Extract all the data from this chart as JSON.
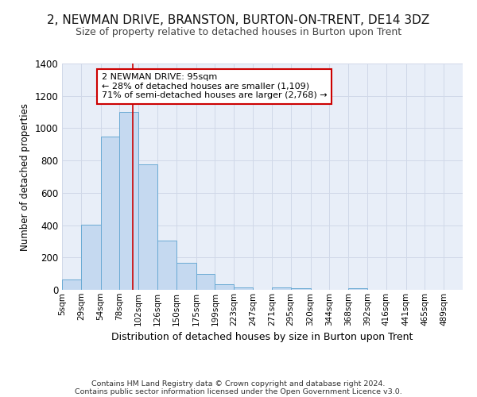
{
  "title_line1": "2, NEWMAN DRIVE, BRANSTON, BURTON-ON-TRENT, DE14 3DZ",
  "title_line2": "Size of property relative to detached houses in Burton upon Trent",
  "xlabel": "Distribution of detached houses by size in Burton upon Trent",
  "ylabel": "Number of detached properties",
  "footer_line1": "Contains HM Land Registry data © Crown copyright and database right 2024.",
  "footer_line2": "Contains public sector information licensed under the Open Government Licence v3.0.",
  "bar_labels": [
    "5sqm",
    "29sqm",
    "54sqm",
    "78sqm",
    "102sqm",
    "126sqm",
    "150sqm",
    "175sqm",
    "199sqm",
    "223sqm",
    "247sqm",
    "271sqm",
    "295sqm",
    "320sqm",
    "344sqm",
    "368sqm",
    "392sqm",
    "416sqm",
    "441sqm",
    "465sqm",
    "489sqm"
  ],
  "bar_values": [
    65,
    405,
    950,
    1100,
    775,
    305,
    165,
    100,
    35,
    15,
    0,
    15,
    10,
    0,
    0,
    10,
    0,
    0,
    0,
    0,
    0
  ],
  "bar_color": "#c5d9f0",
  "bar_edge_color": "#6aaad4",
  "grid_color": "#d0d8e8",
  "background_color": "#e8eef8",
  "annotation_text": "2 NEWMAN DRIVE: 95sqm\n← 28% of detached houses are smaller (1,109)\n71% of semi-detached houses are larger (2,768) →",
  "vline_x": 95,
  "vline_color": "#cc0000",
  "annotation_box_color": "#ffffff",
  "annotation_box_edge": "#cc0000",
  "ylim": [
    0,
    1400
  ],
  "bin_edges": [
    5,
    29,
    54,
    78,
    102,
    126,
    150,
    175,
    199,
    223,
    247,
    271,
    295,
    320,
    344,
    368,
    392,
    416,
    441,
    465,
    489,
    513
  ]
}
